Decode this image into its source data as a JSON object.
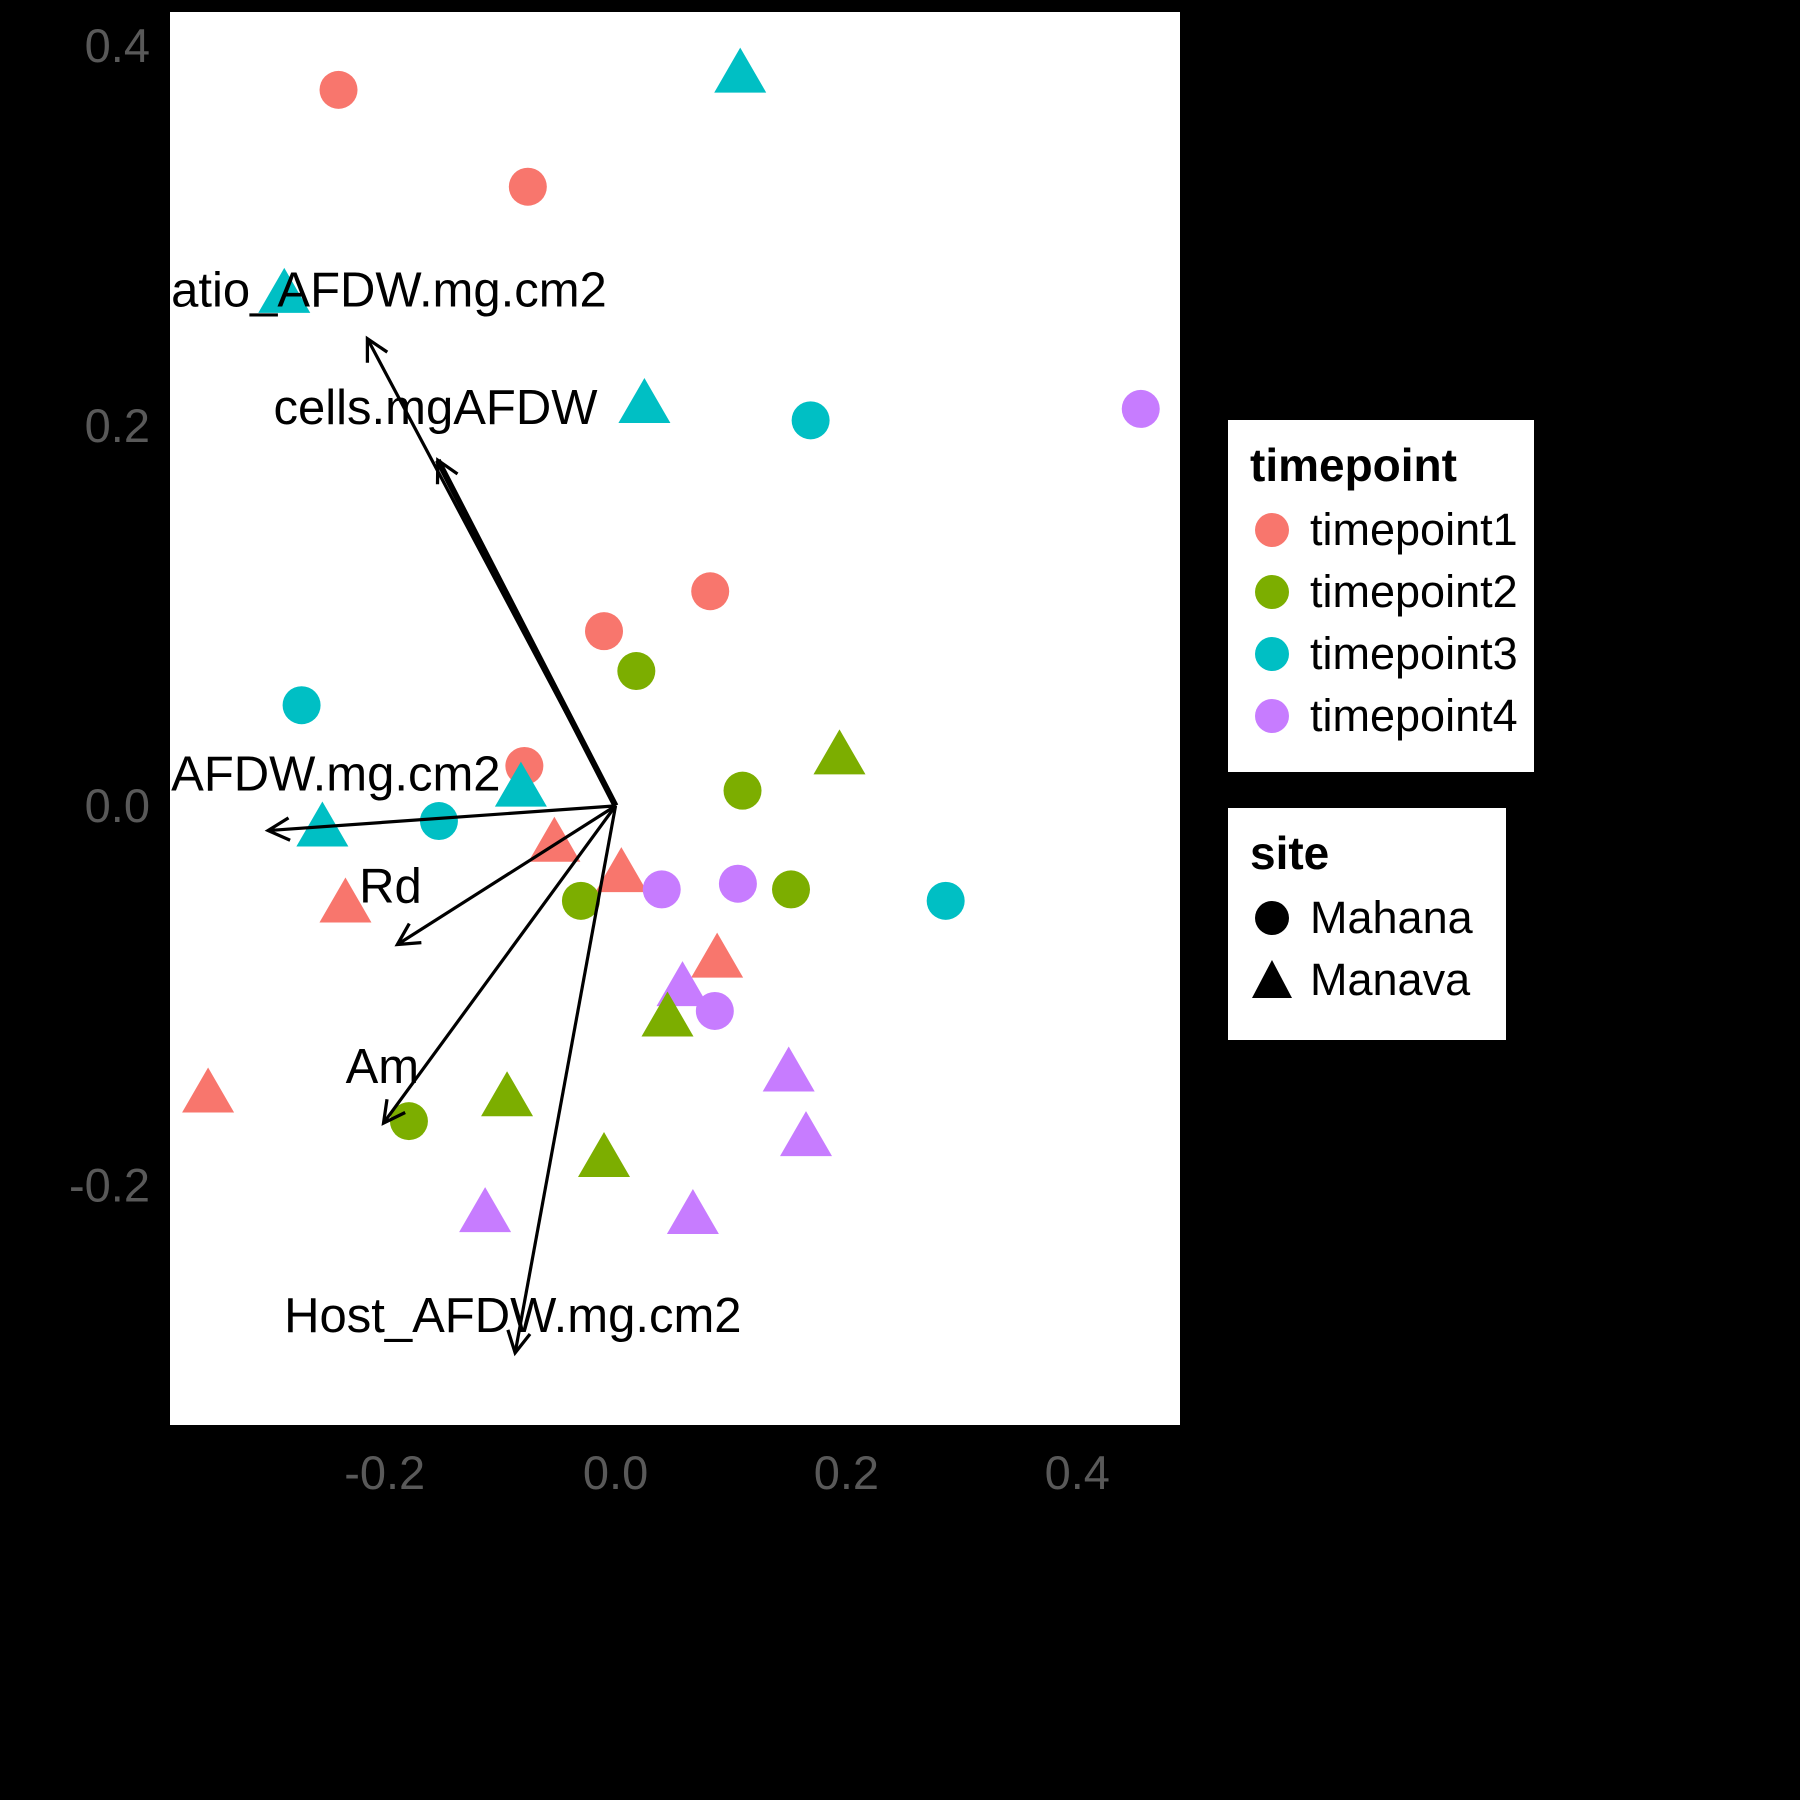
{
  "figure": {
    "background": "#000000",
    "panel_background": "#FFFFFF",
    "axis_text_color": "#595959",
    "arrow_color": "#000000",
    "label_color": "#000000"
  },
  "chart_data": {
    "type": "scatter",
    "title": "",
    "xlabel": "",
    "ylabel": "",
    "grid": false,
    "legend_position": "right",
    "xlim": [
      -0.386,
      0.489
    ],
    "ylim": [
      -0.326,
      0.418
    ],
    "x_ticks": [
      "-0.2",
      "0.0",
      "0.2",
      "0.4"
    ],
    "x_tick_values": [
      -0.2,
      0.0,
      0.2,
      0.4
    ],
    "y_ticks": [
      "0.4",
      "0.2",
      "0.0",
      "-0.2"
    ],
    "y_tick_values": [
      0.4,
      0.2,
      0.0,
      -0.2
    ],
    "colors": {
      "timepoint1": "#F8766D",
      "timepoint2": "#7CAE00",
      "timepoint3": "#00BFC4",
      "timepoint4": "#C77CFF"
    },
    "shapes": {
      "Mahana": "circle",
      "Manava": "triangle"
    },
    "points": [
      {
        "x": -0.24,
        "y": 0.377,
        "timepoint": "timepoint1",
        "site": "Mahana"
      },
      {
        "x": -0.076,
        "y": 0.326,
        "timepoint": "timepoint1",
        "site": "Mahana"
      },
      {
        "x": 0.108,
        "y": 0.384,
        "timepoint": "timepoint3",
        "site": "Manava"
      },
      {
        "x": -0.287,
        "y": 0.268,
        "timepoint": "timepoint3",
        "site": "Manava"
      },
      {
        "x": 0.025,
        "y": 0.21,
        "timepoint": "timepoint3",
        "site": "Manava"
      },
      {
        "x": 0.169,
        "y": 0.203,
        "timepoint": "timepoint3",
        "site": "Mahana"
      },
      {
        "x": 0.455,
        "y": 0.209,
        "timepoint": "timepoint4",
        "site": "Mahana"
      },
      {
        "x": 0.082,
        "y": 0.113,
        "timepoint": "timepoint1",
        "site": "Mahana"
      },
      {
        "x": -0.01,
        "y": 0.092,
        "timepoint": "timepoint1",
        "site": "Mahana"
      },
      {
        "x": 0.018,
        "y": 0.071,
        "timepoint": "timepoint2",
        "site": "Mahana"
      },
      {
        "x": -0.272,
        "y": 0.053,
        "timepoint": "timepoint3",
        "site": "Mahana"
      },
      {
        "x": -0.079,
        "y": 0.021,
        "timepoint": "timepoint1",
        "site": "Mahana"
      },
      {
        "x": 0.11,
        "y": 0.008,
        "timepoint": "timepoint2",
        "site": "Mahana"
      },
      {
        "x": 0.194,
        "y": 0.025,
        "timepoint": "timepoint2",
        "site": "Manava"
      },
      {
        "x": -0.082,
        "y": 0.008,
        "timepoint": "timepoint3",
        "site": "Manava"
      },
      {
        "x": -0.254,
        "y": -0.013,
        "timepoint": "timepoint3",
        "site": "Manava"
      },
      {
        "x": -0.153,
        "y": -0.008,
        "timepoint": "timepoint3",
        "site": "Mahana"
      },
      {
        "x": -0.053,
        "y": -0.021,
        "timepoint": "timepoint1",
        "site": "Manava"
      },
      {
        "x": 0.005,
        "y": -0.037,
        "timepoint": "timepoint1",
        "site": "Manava"
      },
      {
        "x": -0.234,
        "y": -0.053,
        "timepoint": "timepoint1",
        "site": "Manava"
      },
      {
        "x": 0.04,
        "y": -0.044,
        "timepoint": "timepoint4",
        "site": "Mahana"
      },
      {
        "x": 0.106,
        "y": -0.041,
        "timepoint": "timepoint4",
        "site": "Mahana"
      },
      {
        "x": 0.152,
        "y": -0.044,
        "timepoint": "timepoint2",
        "site": "Mahana"
      },
      {
        "x": 0.286,
        "y": -0.05,
        "timepoint": "timepoint3",
        "site": "Mahana"
      },
      {
        "x": -0.03,
        "y": -0.05,
        "timepoint": "timepoint2",
        "site": "Mahana"
      },
      {
        "x": 0.088,
        "y": -0.082,
        "timepoint": "timepoint1",
        "site": "Manava"
      },
      {
        "x": 0.058,
        "y": -0.097,
        "timepoint": "timepoint4",
        "site": "Manava"
      },
      {
        "x": 0.045,
        "y": -0.113,
        "timepoint": "timepoint2",
        "site": "Manava"
      },
      {
        "x": 0.086,
        "y": -0.108,
        "timepoint": "timepoint4",
        "site": "Mahana"
      },
      {
        "x": 0.15,
        "y": -0.142,
        "timepoint": "timepoint4",
        "site": "Manava"
      },
      {
        "x": -0.353,
        "y": -0.153,
        "timepoint": "timepoint1",
        "site": "Manava"
      },
      {
        "x": -0.179,
        "y": -0.166,
        "timepoint": "timepoint2",
        "site": "Mahana"
      },
      {
        "x": -0.094,
        "y": -0.155,
        "timepoint": "timepoint2",
        "site": "Manava"
      },
      {
        "x": 0.165,
        "y": -0.176,
        "timepoint": "timepoint4",
        "site": "Manava"
      },
      {
        "x": -0.01,
        "y": -0.187,
        "timepoint": "timepoint2",
        "site": "Manava"
      },
      {
        "x": -0.113,
        "y": -0.216,
        "timepoint": "timepoint4",
        "site": "Manava"
      },
      {
        "x": 0.067,
        "y": -0.217,
        "timepoint": "timepoint4",
        "site": "Manava"
      }
    ],
    "vectors": [
      {
        "label": "atio_AFDW.mg.cm2",
        "x": -0.215,
        "y": 0.246,
        "label_x": -0.385,
        "label_y": 0.263,
        "anchor": "start",
        "weight": 3.2
      },
      {
        "label": "cells.mgAFDW",
        "x": -0.154,
        "y": 0.182,
        "label_x": -0.156,
        "label_y": 0.201,
        "anchor": "middle",
        "weight": 6
      },
      {
        "label": "AFDW.mg.cm2",
        "x": -0.301,
        "y": -0.013,
        "label_x": -0.385,
        "label_y": 0.008,
        "anchor": "start",
        "weight": 3.2
      },
      {
        "label": "Rd",
        "x": -0.189,
        "y": -0.073,
        "label_x": -0.195,
        "label_y": -0.051,
        "anchor": "middle",
        "weight": 3.2
      },
      {
        "label": "Am",
        "x": -0.201,
        "y": -0.167,
        "label_x": -0.202,
        "label_y": -0.146,
        "anchor": "middle",
        "weight": 3.2
      },
      {
        "label": "Host_AFDW.mg.cm2",
        "x": -0.087,
        "y": -0.288,
        "label_x": -0.089,
        "label_y": -0.277,
        "anchor": "middle",
        "weight": 3.2
      }
    ],
    "legend_timepoint": {
      "title": "timepoint",
      "entries": [
        {
          "label": "timepoint1",
          "color": "#F8766D",
          "shape": "circle"
        },
        {
          "label": "timepoint2",
          "color": "#7CAE00",
          "shape": "circle"
        },
        {
          "label": "timepoint3",
          "color": "#00BFC4",
          "shape": "circle"
        },
        {
          "label": "timepoint4",
          "color": "#C77CFF",
          "shape": "circle"
        }
      ]
    },
    "legend_site": {
      "title": "site",
      "entries": [
        {
          "label": "Mahana",
          "color": "#000000",
          "shape": "circle"
        },
        {
          "label": "Manava",
          "color": "#000000",
          "shape": "triangle"
        }
      ]
    }
  }
}
